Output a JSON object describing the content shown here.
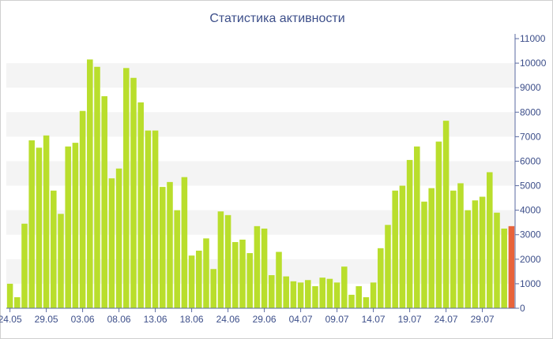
{
  "chart_data": {
    "type": "bar",
    "title": "Статистика активности",
    "xlabel": "",
    "ylabel": "",
    "ylim": [
      0,
      11000
    ],
    "yticks": [
      0,
      1000,
      2000,
      3000,
      4000,
      5000,
      6000,
      7000,
      8000,
      9000,
      10000,
      11000
    ],
    "y_axis_side": "right",
    "grid": "alternating horizontal bands",
    "x_tick_labels": [
      "24.05",
      "29.05",
      "03.06",
      "08.06",
      "13.06",
      "18.06",
      "24.06",
      "29.06",
      "04.07",
      "09.07",
      "14.07",
      "19.07",
      "24.07",
      "29.07"
    ],
    "x_tick_positions": [
      0,
      5,
      10,
      15,
      20,
      25,
      30,
      35,
      40,
      45,
      50,
      55,
      60,
      65
    ],
    "values": [
      1000,
      450,
      3450,
      6850,
      6550,
      7050,
      4800,
      3850,
      6600,
      6750,
      8050,
      10150,
      9850,
      8650,
      5300,
      5700,
      9800,
      9400,
      8400,
      7250,
      7250,
      4950,
      5150,
      4000,
      5350,
      2150,
      2350,
      2850,
      1600,
      3950,
      3800,
      2700,
      2800,
      2250,
      3350,
      3250,
      1350,
      2300,
      1300,
      1100,
      1050,
      1150,
      900,
      1250,
      1200,
      1050,
      1700,
      550,
      900,
      450,
      1050,
      2450,
      3400,
      4800,
      5000,
      6050,
      6600,
      4350,
      4900,
      6800,
      7650,
      4800,
      5100,
      4000,
      4400,
      4550,
      5550,
      3900,
      3250,
      3350
    ],
    "bar_color": "#b9de2c",
    "highlight_index": 69,
    "highlight_color": "#e8633a"
  }
}
